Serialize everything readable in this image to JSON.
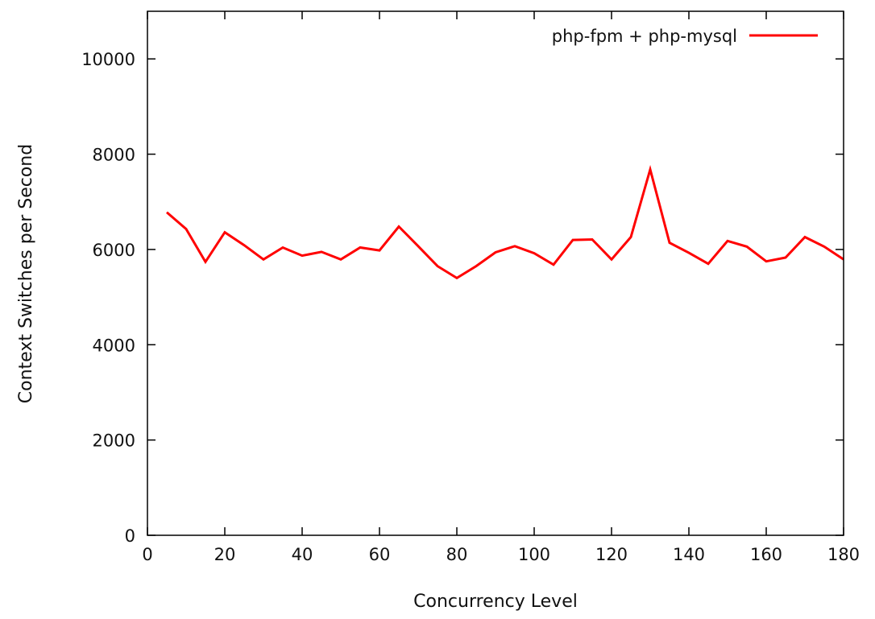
{
  "chart_data": {
    "type": "line",
    "xlabel": "Concurrency Level",
    "ylabel": "Context Switches per Second",
    "xlim": [
      0,
      180
    ],
    "ylim": [
      0,
      11000
    ],
    "xticks": [
      0,
      20,
      40,
      60,
      80,
      100,
      120,
      140,
      160,
      180
    ],
    "yticks": [
      0,
      2000,
      4000,
      6000,
      8000,
      10000
    ],
    "grid": false,
    "legend_position": "top-right",
    "series": [
      {
        "name": "php-fpm + php-mysql",
        "color": "#ff0000",
        "x": [
          5,
          10,
          15,
          20,
          25,
          30,
          35,
          40,
          45,
          50,
          55,
          60,
          65,
          70,
          75,
          80,
          85,
          90,
          95,
          100,
          105,
          110,
          115,
          120,
          125,
          130,
          135,
          140,
          145,
          150,
          155,
          160,
          165,
          170,
          175,
          180
        ],
        "y": [
          6780,
          6430,
          5740,
          6360,
          6090,
          5790,
          6040,
          5870,
          5950,
          5790,
          6040,
          5980,
          6480,
          6070,
          5650,
          5400,
          5650,
          5940,
          6070,
          5920,
          5680,
          6200,
          6210,
          5790,
          6260,
          7680,
          6140,
          5930,
          5700,
          6180,
          6060,
          5750,
          5830,
          6260,
          6060,
          5790
        ]
      }
    ]
  }
}
